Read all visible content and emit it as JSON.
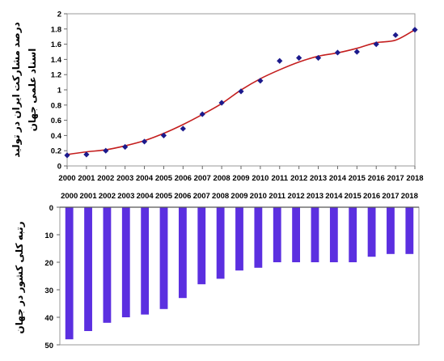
{
  "chart_data": [
    {
      "type": "scatter",
      "x": [
        2000,
        2001,
        2002,
        2003,
        2004,
        2005,
        2006,
        2007,
        2008,
        2009,
        2010,
        2011,
        2012,
        2013,
        2014,
        2015,
        2016,
        2017,
        2018
      ],
      "values": [
        0.14,
        0.15,
        0.2,
        0.25,
        0.32,
        0.4,
        0.49,
        0.68,
        0.83,
        0.98,
        1.12,
        1.38,
        1.42,
        1.42,
        1.49,
        1.5,
        1.6,
        1.72,
        1.79
      ],
      "trendline": true,
      "ylabel_lines": [
        "درصد مشارکت ایران در تولید",
        "اسناد علمی جهان"
      ],
      "xlabel": "",
      "xlim": [
        2000,
        2018
      ],
      "ylim": [
        0,
        2
      ],
      "y_ticks": [
        0,
        0.2,
        0.4,
        0.6,
        0.8,
        1,
        1.2,
        1.4,
        1.6,
        1.8,
        2
      ],
      "grid": false,
      "colors": {
        "points": "#1c1a8c",
        "trend": "#c41e1e",
        "frame": "#9a9a9a"
      }
    },
    {
      "type": "bar",
      "categories": [
        "2000",
        "2001",
        "2002",
        "2003",
        "2004",
        "2005",
        "2006",
        "2007",
        "2008",
        "2009",
        "2010",
        "2011",
        "2012",
        "2013",
        "2014",
        "2015",
        "2016",
        "2017",
        "2018"
      ],
      "values": [
        48,
        45,
        42,
        40,
        39,
        37,
        33,
        28,
        26,
        23,
        22,
        20,
        20,
        20,
        20,
        20,
        18,
        17,
        17
      ],
      "ylabel": "رتبه کلی کشور در جهان",
      "xlabel": "",
      "ylim": [
        0,
        50
      ],
      "y_ticks": [
        0,
        10,
        20,
        30,
        40,
        50
      ],
      "y_inverted": true,
      "grid": false,
      "colors": {
        "bars": "#5b2fe0",
        "frame": "#9a9a9a"
      }
    }
  ]
}
